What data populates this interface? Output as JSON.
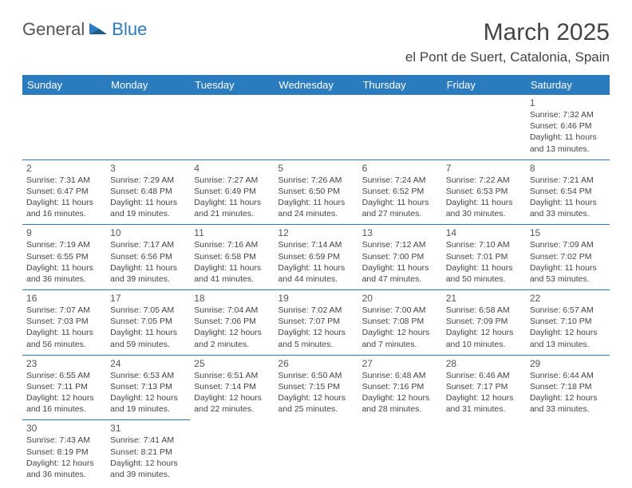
{
  "logo": {
    "text1": "General",
    "text2": "Blue"
  },
  "title": "March 2025",
  "location": "el Pont de Suert, Catalonia, Spain",
  "dayHeaders": [
    "Sunday",
    "Monday",
    "Tuesday",
    "Wednesday",
    "Thursday",
    "Friday",
    "Saturday"
  ],
  "colors": {
    "headerBg": "#2b7bbf",
    "headerText": "#ffffff",
    "border": "#2b7bbf",
    "logoBlue": "#2b7bbf",
    "bodyText": "#444444"
  },
  "weeks": [
    [
      null,
      null,
      null,
      null,
      null,
      null,
      {
        "n": "1",
        "sr": "7:32 AM",
        "ss": "6:46 PM",
        "dl": "11 hours and 13 minutes."
      }
    ],
    [
      {
        "n": "2",
        "sr": "7:31 AM",
        "ss": "6:47 PM",
        "dl": "11 hours and 16 minutes."
      },
      {
        "n": "3",
        "sr": "7:29 AM",
        "ss": "6:48 PM",
        "dl": "11 hours and 19 minutes."
      },
      {
        "n": "4",
        "sr": "7:27 AM",
        "ss": "6:49 PM",
        "dl": "11 hours and 21 minutes."
      },
      {
        "n": "5",
        "sr": "7:26 AM",
        "ss": "6:50 PM",
        "dl": "11 hours and 24 minutes."
      },
      {
        "n": "6",
        "sr": "7:24 AM",
        "ss": "6:52 PM",
        "dl": "11 hours and 27 minutes."
      },
      {
        "n": "7",
        "sr": "7:22 AM",
        "ss": "6:53 PM",
        "dl": "11 hours and 30 minutes."
      },
      {
        "n": "8",
        "sr": "7:21 AM",
        "ss": "6:54 PM",
        "dl": "11 hours and 33 minutes."
      }
    ],
    [
      {
        "n": "9",
        "sr": "7:19 AM",
        "ss": "6:55 PM",
        "dl": "11 hours and 36 minutes."
      },
      {
        "n": "10",
        "sr": "7:17 AM",
        "ss": "6:56 PM",
        "dl": "11 hours and 39 minutes."
      },
      {
        "n": "11",
        "sr": "7:16 AM",
        "ss": "6:58 PM",
        "dl": "11 hours and 41 minutes."
      },
      {
        "n": "12",
        "sr": "7:14 AM",
        "ss": "6:59 PM",
        "dl": "11 hours and 44 minutes."
      },
      {
        "n": "13",
        "sr": "7:12 AM",
        "ss": "7:00 PM",
        "dl": "11 hours and 47 minutes."
      },
      {
        "n": "14",
        "sr": "7:10 AM",
        "ss": "7:01 PM",
        "dl": "11 hours and 50 minutes."
      },
      {
        "n": "15",
        "sr": "7:09 AM",
        "ss": "7:02 PM",
        "dl": "11 hours and 53 minutes."
      }
    ],
    [
      {
        "n": "16",
        "sr": "7:07 AM",
        "ss": "7:03 PM",
        "dl": "11 hours and 56 minutes."
      },
      {
        "n": "17",
        "sr": "7:05 AM",
        "ss": "7:05 PM",
        "dl": "11 hours and 59 minutes."
      },
      {
        "n": "18",
        "sr": "7:04 AM",
        "ss": "7:06 PM",
        "dl": "12 hours and 2 minutes."
      },
      {
        "n": "19",
        "sr": "7:02 AM",
        "ss": "7:07 PM",
        "dl": "12 hours and 5 minutes."
      },
      {
        "n": "20",
        "sr": "7:00 AM",
        "ss": "7:08 PM",
        "dl": "12 hours and 7 minutes."
      },
      {
        "n": "21",
        "sr": "6:58 AM",
        "ss": "7:09 PM",
        "dl": "12 hours and 10 minutes."
      },
      {
        "n": "22",
        "sr": "6:57 AM",
        "ss": "7:10 PM",
        "dl": "12 hours and 13 minutes."
      }
    ],
    [
      {
        "n": "23",
        "sr": "6:55 AM",
        "ss": "7:11 PM",
        "dl": "12 hours and 16 minutes."
      },
      {
        "n": "24",
        "sr": "6:53 AM",
        "ss": "7:13 PM",
        "dl": "12 hours and 19 minutes."
      },
      {
        "n": "25",
        "sr": "6:51 AM",
        "ss": "7:14 PM",
        "dl": "12 hours and 22 minutes."
      },
      {
        "n": "26",
        "sr": "6:50 AM",
        "ss": "7:15 PM",
        "dl": "12 hours and 25 minutes."
      },
      {
        "n": "27",
        "sr": "6:48 AM",
        "ss": "7:16 PM",
        "dl": "12 hours and 28 minutes."
      },
      {
        "n": "28",
        "sr": "6:46 AM",
        "ss": "7:17 PM",
        "dl": "12 hours and 31 minutes."
      },
      {
        "n": "29",
        "sr": "6:44 AM",
        "ss": "7:18 PM",
        "dl": "12 hours and 33 minutes."
      }
    ],
    [
      {
        "n": "30",
        "sr": "7:43 AM",
        "ss": "8:19 PM",
        "dl": "12 hours and 36 minutes."
      },
      {
        "n": "31",
        "sr": "7:41 AM",
        "ss": "8:21 PM",
        "dl": "12 hours and 39 minutes."
      },
      null,
      null,
      null,
      null,
      null
    ]
  ],
  "labels": {
    "sunrise": "Sunrise:",
    "sunset": "Sunset:",
    "daylight": "Daylight:"
  }
}
